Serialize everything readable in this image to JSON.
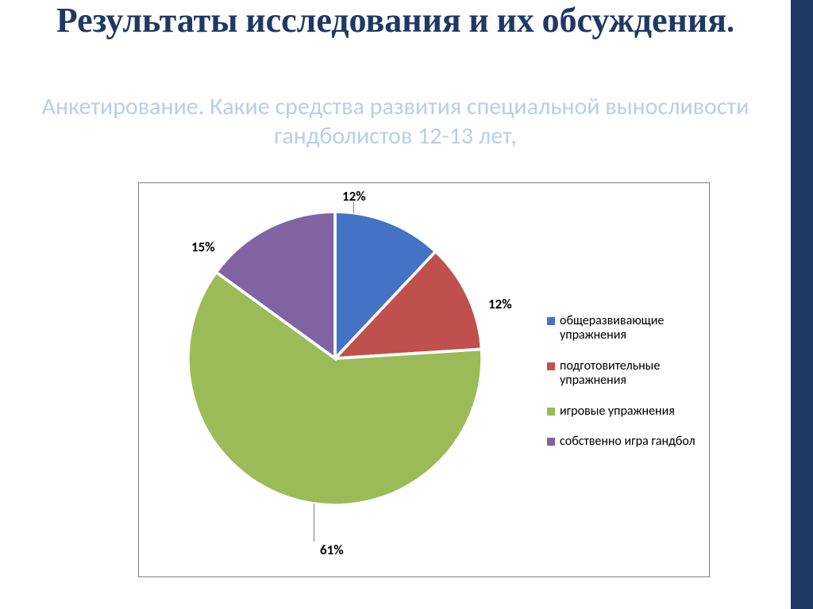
{
  "title": "Результаты исследования и их обсуждения.",
  "subtitle": "Анкетирование. Какие средства развития специальной выносливости гандболистов  12-13 лет,",
  "title_color": "#1f3864",
  "subtitle_color": "#b8cfe8",
  "right_band_color": "#1f3864",
  "chart": {
    "type": "pie",
    "border_color": "#7f7f7f",
    "background_color": "#ffffff",
    "label_fontsize": 17,
    "label_fontweight": 700,
    "legend_fontsize": 16,
    "slices": [
      {
        "label": "общеразвивающие упражнения",
        "value": 12,
        "display": "12%",
        "color": "#4472c4"
      },
      {
        "label": "подготовительные упражнения",
        "value": 12,
        "display": "12%",
        "color": "#c0504d"
      },
      {
        "label": "игровые упражнения",
        "value": 61,
        "display": "61%",
        "color": "#9bbb59"
      },
      {
        "label": "собственно игра гандбол",
        "value": 15,
        "display": "15%",
        "color": "#8064a2"
      }
    ],
    "slice_stroke": "#ffffff",
    "slice_stroke_width": 2
  }
}
